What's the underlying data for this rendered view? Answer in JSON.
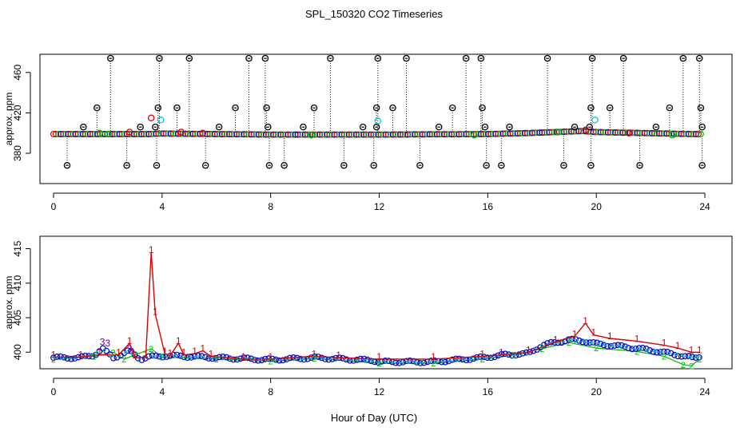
{
  "title": "SPL_150320  CO2 Timeseries",
  "colors": {
    "black": "#000000",
    "red": "#dd0000",
    "blue": "#0000cc",
    "cyan": "#00cccc",
    "green": "#00bb00"
  },
  "chart_data": [
    {
      "type": "scatter",
      "panel": "top",
      "title": "SPL_150320  CO2 Timeseries",
      "xlabel": "",
      "ylabel": "approx. ppm",
      "xlim": [
        -0.5,
        25.0
      ],
      "ylim": [
        350,
        478
      ],
      "x_ticks": [
        "0",
        "4",
        "8",
        "12",
        "16",
        "20",
        "24"
      ],
      "x_tick_values": [
        0,
        4,
        8,
        12,
        16,
        20,
        24
      ],
      "y_ticks": [
        "380",
        "420",
        "460"
      ],
      "y_tick_values": [
        380,
        420,
        460
      ],
      "baseline": {
        "series_colors": [
          "#dd0000",
          "#00bb00",
          "#0000cc"
        ],
        "segments": [
          [
            0,
            399
          ],
          [
            3.5,
            399
          ],
          [
            4.0,
            399.5
          ],
          [
            8.0,
            398.5
          ],
          [
            12.0,
            398.5
          ],
          [
            16.0,
            399
          ],
          [
            17.5,
            400
          ],
          [
            19.5,
            402
          ],
          [
            20.0,
            401
          ],
          [
            23.5,
            399
          ],
          [
            23.8,
            399
          ]
        ]
      },
      "series": [
        {
          "name": "outliers_high",
          "color": "#000000",
          "points": [
            [
              2.1,
              474
            ],
            [
              3.9,
              474
            ],
            [
              5.0,
              474
            ],
            [
              7.2,
              474
            ],
            [
              7.8,
              474
            ],
            [
              10.2,
              474
            ],
            [
              11.95,
              474
            ],
            [
              13.0,
              474
            ],
            [
              15.2,
              474
            ],
            [
              15.75,
              474
            ],
            [
              18.2,
              474
            ],
            [
              19.85,
              474
            ],
            [
              21.0,
              474
            ],
            [
              23.2,
              474
            ],
            [
              23.8,
              474
            ],
            [
              1.6,
              425
            ],
            [
              3.85,
              425
            ],
            [
              4.55,
              425
            ],
            [
              6.7,
              425
            ],
            [
              7.85,
              425
            ],
            [
              9.6,
              425
            ],
            [
              11.9,
              425
            ],
            [
              12.5,
              425
            ],
            [
              14.7,
              425
            ],
            [
              15.8,
              425
            ],
            [
              19.8,
              425
            ],
            [
              20.5,
              425
            ],
            [
              22.7,
              425
            ],
            [
              23.85,
              425
            ],
            [
              1.1,
              406
            ],
            [
              3.2,
              406
            ],
            [
              3.75,
              406
            ],
            [
              6.1,
              406
            ],
            [
              7.9,
              406
            ],
            [
              9.2,
              406
            ],
            [
              11.4,
              406
            ],
            [
              11.9,
              406
            ],
            [
              14.2,
              406
            ],
            [
              15.9,
              406
            ],
            [
              16.8,
              406
            ],
            [
              19.2,
              406
            ],
            [
              19.75,
              406
            ],
            [
              22.2,
              406
            ],
            [
              23.9,
              406
            ]
          ]
        },
        {
          "name": "outliers_low",
          "color": "#000000",
          "points": [
            [
              0.5,
              368
            ],
            [
              2.7,
              368
            ],
            [
              3.8,
              368
            ],
            [
              5.6,
              368
            ],
            [
              7.95,
              368
            ],
            [
              8.5,
              368
            ],
            [
              10.7,
              368
            ],
            [
              11.8,
              368
            ],
            [
              13.5,
              368
            ],
            [
              15.95,
              368
            ],
            [
              16.5,
              368
            ],
            [
              18.8,
              368
            ],
            [
              19.8,
              368
            ],
            [
              21.6,
              368
            ],
            [
              23.9,
              368
            ]
          ]
        },
        {
          "name": "red_points",
          "color": "#dd0000",
          "points": [
            [
              3.6,
              415
            ],
            [
              2.8,
              401
            ],
            [
              4.7,
              401
            ],
            [
              5.5,
              400
            ],
            [
              19.6,
              403
            ],
            [
              21.2,
              400
            ]
          ]
        },
        {
          "name": "cyan_points",
          "color": "#00cccc",
          "points": [
            [
              3.95,
              413
            ],
            [
              11.95,
              412
            ],
            [
              19.95,
              413
            ]
          ]
        },
        {
          "name": "green_points",
          "color": "#00bb00",
          "points": [
            [
              1.7,
              400
            ],
            [
              2.0,
              399
            ],
            [
              9.5,
              398
            ],
            [
              15.5,
              398
            ],
            [
              18.6,
              401
            ],
            [
              22.8,
              398
            ]
          ]
        }
      ]
    },
    {
      "type": "scatter",
      "panel": "bottom",
      "title": "",
      "xlabel": "Hour of Day (UTC)",
      "ylabel": "approx. ppm",
      "xlim": [
        -0.5,
        25.0
      ],
      "ylim": [
        397.6,
        416.8
      ],
      "x_ticks": [
        "0",
        "4",
        "8",
        "12",
        "16",
        "20",
        "24"
      ],
      "x_tick_values": [
        0,
        4,
        8,
        12,
        16,
        20,
        24
      ],
      "y_ticks": [
        "400",
        "405",
        "410",
        "415"
      ],
      "y_tick_values": [
        400,
        405,
        410,
        415
      ],
      "series": [
        {
          "name": "red_line_1",
          "color": "#dd0000",
          "symbol": "1",
          "points": [
            [
              0,
              399.3
            ],
            [
              1.0,
              399.3
            ],
            [
              1.7,
              399.6
            ],
            [
              2.4,
              399.6
            ],
            [
              2.8,
              401.3
            ],
            [
              3.0,
              399.2
            ],
            [
              3.4,
              399.3
            ],
            [
              3.6,
              414.5
            ],
            [
              3.75,
              405.5
            ],
            [
              4.1,
              399.8
            ],
            [
              4.3,
              399.5
            ],
            [
              4.6,
              401.3
            ],
            [
              4.8,
              399.6
            ],
            [
              5.2,
              399.8
            ],
            [
              5.5,
              400.2
            ],
            [
              5.8,
              399.4
            ],
            [
              7.0,
              399.0
            ],
            [
              8.0,
              399.0
            ],
            [
              9.6,
              399.4
            ],
            [
              10.5,
              399.2
            ],
            [
              12.0,
              399.0
            ],
            [
              14.0,
              399.0
            ],
            [
              15.8,
              399.4
            ],
            [
              16.5,
              399.6
            ],
            [
              17.5,
              400.0
            ],
            [
              18.5,
              401.5
            ],
            [
              19.2,
              402.3
            ],
            [
              19.6,
              404.2
            ],
            [
              19.9,
              402.5
            ],
            [
              20.5,
              402.0
            ],
            [
              21.5,
              401.6
            ],
            [
              22.5,
              401.0
            ],
            [
              23.0,
              400.6
            ],
            [
              23.5,
              400.0
            ],
            [
              23.8,
              400.0
            ]
          ]
        },
        {
          "name": "blue_circles",
          "color": "#0000cc",
          "points": [
            [
              0,
              399.2
            ],
            [
              1.0,
              399.2
            ],
            [
              1.5,
              399.6
            ],
            [
              1.8,
              400.5
            ],
            [
              2.2,
              399.2
            ],
            [
              2.8,
              400.2
            ],
            [
              3.2,
              399.0
            ],
            [
              3.5,
              399.3
            ],
            [
              4.2,
              399.5
            ],
            [
              6.0,
              399.2
            ],
            [
              8.0,
              398.9
            ],
            [
              9.6,
              399.2
            ],
            [
              11.8,
              398.8
            ],
            [
              12.0,
              398.6
            ],
            [
              14.0,
              398.6
            ],
            [
              15.8,
              399.2
            ],
            [
              16.6,
              399.6
            ],
            [
              17.5,
              399.8
            ],
            [
              18.0,
              401.0
            ],
            [
              19.0,
              401.8
            ],
            [
              19.6,
              401.6
            ],
            [
              20.0,
              401.2
            ],
            [
              21.0,
              400.8
            ],
            [
              22.0,
              400.3
            ],
            [
              23.0,
              399.6
            ],
            [
              23.6,
              399.1
            ],
            [
              23.8,
              399.4
            ]
          ]
        },
        {
          "name": "green_line_2",
          "color": "#00bb00",
          "symbol": "2",
          "points": [
            [
              0,
              399.0
            ],
            [
              1.5,
              399.4
            ],
            [
              2.2,
              400.0
            ],
            [
              2.6,
              399.0
            ],
            [
              3.6,
              400.5
            ],
            [
              4.0,
              399.3
            ],
            [
              6.0,
              399.0
            ],
            [
              8.0,
              398.7
            ],
            [
              9.6,
              399.1
            ],
            [
              12.0,
              398.4
            ],
            [
              14.0,
              398.4
            ],
            [
              15.8,
              399.0
            ],
            [
              17.0,
              399.6
            ],
            [
              18.0,
              400.5
            ],
            [
              19.0,
              401.4
            ],
            [
              20.0,
              400.6
            ],
            [
              21.5,
              400.1
            ],
            [
              22.5,
              399.4
            ],
            [
              23.2,
              398.2
            ],
            [
              23.5,
              398.0
            ],
            [
              23.8,
              399.0
            ]
          ]
        },
        {
          "name": "purple_3",
          "color": "#6600aa",
          "symbol": "3",
          "points": [
            [
              1.8,
              401.5
            ],
            [
              2.0,
              401.3
            ],
            [
              2.8,
              400.5
            ]
          ]
        }
      ]
    }
  ]
}
